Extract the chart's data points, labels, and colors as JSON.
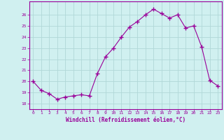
{
  "x": [
    0,
    1,
    2,
    3,
    4,
    5,
    6,
    7,
    8,
    9,
    10,
    11,
    12,
    13,
    14,
    15,
    16,
    17,
    18,
    19,
    20,
    21,
    22,
    23
  ],
  "y": [
    20.0,
    19.2,
    18.9,
    18.4,
    18.6,
    18.7,
    18.8,
    18.7,
    20.7,
    22.2,
    23.0,
    24.0,
    24.9,
    25.4,
    26.0,
    26.5,
    26.1,
    25.7,
    26.0,
    24.8,
    25.0,
    23.1,
    20.1,
    19.6
  ],
  "line_color": "#990099",
  "marker": "+",
  "marker_size": 4.0,
  "bg_color": "#d0f0f0",
  "grid_color": "#b0d8d8",
  "xlabel": "Windchill (Refroidissement éolien,°C)",
  "xlabel_color": "#990099",
  "tick_color": "#990099",
  "ylim": [
    17.5,
    27.2
  ],
  "xlim": [
    -0.5,
    23.5
  ],
  "yticks": [
    18,
    19,
    20,
    21,
    22,
    23,
    24,
    25,
    26
  ],
  "xticks": [
    0,
    1,
    2,
    3,
    4,
    5,
    6,
    7,
    8,
    9,
    10,
    11,
    12,
    13,
    14,
    15,
    16,
    17,
    18,
    19,
    20,
    21,
    22,
    23
  ],
  "spine_color": "#990099"
}
